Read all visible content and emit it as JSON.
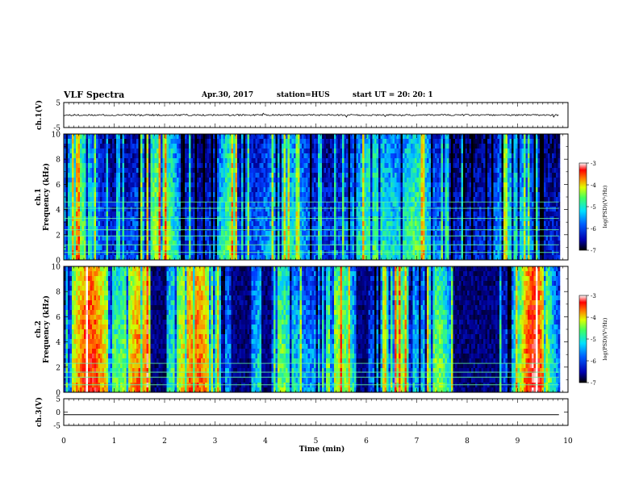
{
  "header": {
    "title": "VLF Spectra",
    "date": "Apr.30, 2017",
    "station": "station=HUS",
    "start_time": "start UT =  20: 20: 1"
  },
  "colors": {
    "colormap": [
      "#000080",
      "#0000ff",
      "#0080ff",
      "#00e0ff",
      "#40ff80",
      "#c0ff00",
      "#ffff00",
      "#ff8000",
      "#ff0000",
      "#ffffff"
    ],
    "trace": "#000000",
    "axis": "#000000"
  },
  "chart_data": [
    {
      "type": "line",
      "name": "ch1-waveform",
      "ylabel": "ch.1(V)",
      "ylim": [
        -5,
        5
      ],
      "yticks": [
        "5",
        "-5"
      ],
      "level": 0,
      "noise_amplitude": 0.3
    },
    {
      "type": "heatmap",
      "name": "ch1-spectrogram",
      "ylabel": "ch.1\nFrequency (kHz)",
      "ylabel_top": "ch.1",
      "ylabel_bottom": "Frequency (kHz)",
      "ylim": [
        0,
        10
      ],
      "yticks": [
        "0",
        "2",
        "4",
        "6",
        "8",
        "10"
      ],
      "colorbar": {
        "label": "log(PSD)(V²/Hz)",
        "range": [
          -7,
          -3
        ],
        "ticks": [
          "-3",
          "-4",
          "-5",
          "-6",
          "-7"
        ]
      },
      "emission_bands_khz": [
        0.6,
        1.2,
        1.9,
        2.4,
        3.3,
        4.1,
        4.6
      ]
    },
    {
      "type": "heatmap",
      "name": "ch2-spectrogram",
      "ylabel_top": "ch.2",
      "ylabel_bottom": "Frequency (kHz)",
      "ylim": [
        0,
        10
      ],
      "yticks": [
        "0",
        "2",
        "4",
        "6",
        "8",
        "10"
      ],
      "colorbar": {
        "label": "log(PSD)(V²/Hz)",
        "range": [
          -7,
          -3
        ],
        "ticks": [
          "-3",
          "-4",
          "-5",
          "-6",
          "-7"
        ]
      },
      "emission_bands_khz": [
        0.6,
        1.2,
        1.6,
        2.3
      ]
    },
    {
      "type": "line",
      "name": "ch3-waveform",
      "ylabel": "ch.3(V)",
      "ylim": [
        -5,
        5
      ],
      "yticks": [
        "5",
        "0",
        "-5"
      ],
      "level": -1
    }
  ],
  "xaxis": {
    "label": "Time (min)",
    "xlim": [
      0,
      10
    ],
    "data_end": 9.82,
    "ticks": [
      "0",
      "1",
      "2",
      "3",
      "4",
      "5",
      "6",
      "7",
      "8",
      "9",
      "10"
    ]
  }
}
